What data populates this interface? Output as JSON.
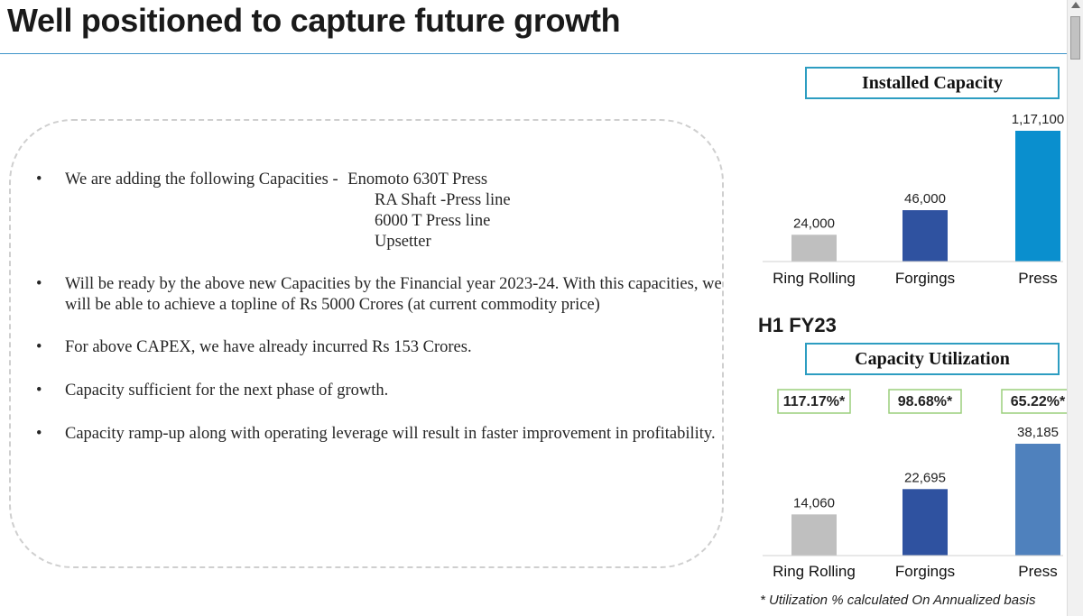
{
  "page": {
    "title": "Well positioned to capture future growth"
  },
  "bullets": {
    "capacities_intro": "We are adding the following Capacities -",
    "capacities": [
      "Enomoto 630T Press",
      "RA Shaft -Press line",
      "6000 T Press line",
      "Upsetter"
    ],
    "ready_line": "Will be ready by the above new Capacities by the Financial year 2023-24. With this capacities, we will be able to achieve a topline of Rs 5000 Crores (at current commodity price)",
    "capex_line": "For above CAPEX, we have already incurred Rs 153 Crores.",
    "sufficient_line": "Capacity sufficient for the next phase of growth.",
    "rampup_line": "Capacity ramp-up along with operating leverage will result in faster improvement in profitability.",
    "marker": "•"
  },
  "labels": {
    "installed_title": "Installed Capacity",
    "period_label": "H1 FY23",
    "utilization_title": "Capacity Utilization",
    "footnote": "* Utilization % calculated On Annualized basis"
  },
  "chart_data": [
    {
      "type": "bar",
      "title": "Installed Capacity",
      "categories": [
        "Ring Rolling",
        "Forgings",
        "Press"
      ],
      "values": [
        24000,
        46000,
        117100
      ],
      "value_labels": [
        "24,000",
        "46,000",
        "1,17,100"
      ],
      "colors": [
        "#bfbfbf",
        "#2f52a0",
        "#0a8fce"
      ],
      "grid": false,
      "legend": "none"
    },
    {
      "type": "bar",
      "title": "Capacity Utilization",
      "categories": [
        "Ring Rolling",
        "Forgings",
        "Press"
      ],
      "values": [
        14060,
        22695,
        38185
      ],
      "value_labels": [
        "14,060",
        "22,695",
        "38,185"
      ],
      "utilization_labels": [
        "117.17%*",
        "98.68%*",
        "65.22%*"
      ],
      "colors": [
        "#bfbfbf",
        "#2f52a0",
        "#4f81bd"
      ],
      "grid": false,
      "legend": "none"
    }
  ],
  "colors": {
    "accent": "#3f95c9",
    "box_border": "#2d9dc1",
    "pct_border": "#9bcf7d"
  }
}
